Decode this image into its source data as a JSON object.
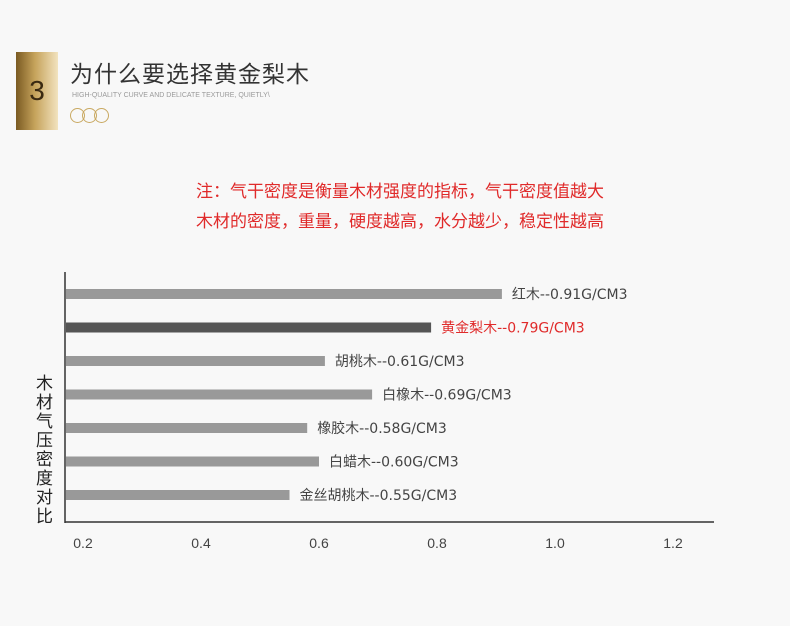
{
  "section": {
    "number": "3",
    "title": "为什么要选择黄金梨木",
    "subtitle": "HIGH-QUALITY CURVE AND DELICATE TEXTURE, QUIETLY\\"
  },
  "note": {
    "line1": "注：气干密度是衡量木材强度的指标，气干密度值越大",
    "line2": "木材的密度，重量，硬度越高，水分越少，稳定性越高"
  },
  "colors": {
    "accent": "#c9a962",
    "note_red": "#e02a2a",
    "bar_default": "#999999",
    "bar_highlight": "#555555"
  },
  "chart_data": {
    "type": "bar",
    "orientation": "horizontal",
    "ylabel": "木材气压密度对比",
    "xlabel": "",
    "xlim": [
      0.2,
      1.3
    ],
    "xticks": [
      "0.2",
      "0.4",
      "0.6",
      "0.8",
      "1.0",
      "1.2"
    ],
    "categories": [
      "红木",
      "黄金梨木",
      "胡桃木",
      "白橡木",
      "橡胶木",
      "白蜡木",
      "金丝胡桃木"
    ],
    "values": [
      0.91,
      0.79,
      0.61,
      0.69,
      0.58,
      0.6,
      0.55
    ],
    "labels": [
      "红木--0.91G/CM3",
      "黄金梨木--0.79G/CM3",
      "胡桃木--0.61G/CM3",
      "白橡木--0.69G/CM3",
      "橡胶木--0.58G/CM3",
      "白蜡木--0.60G/CM3",
      "金丝胡桃木--0.55G/CM3"
    ],
    "highlight_index": 1,
    "grid": false,
    "legend": "none"
  }
}
